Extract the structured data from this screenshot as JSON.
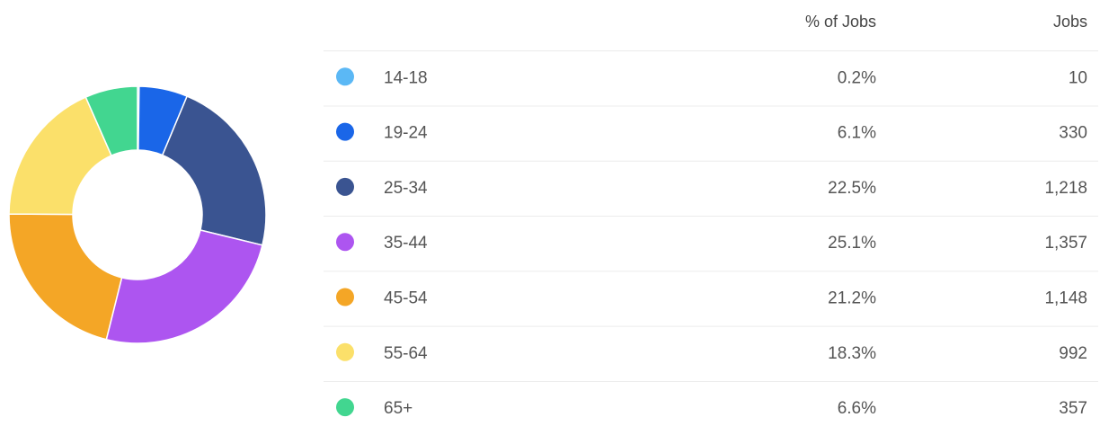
{
  "chart_data": {
    "type": "pie",
    "donut": true,
    "columns": [
      "% of Jobs",
      "Jobs"
    ],
    "categories": [
      "14-18",
      "19-24",
      "25-34",
      "35-44",
      "45-54",
      "55-64",
      "65+"
    ],
    "values": [
      0.2,
      6.1,
      22.5,
      25.1,
      21.2,
      18.3,
      6.6
    ],
    "value_labels": [
      "0.2%",
      "6.1%",
      "22.5%",
      "25.1%",
      "21.2%",
      "18.3%",
      "6.6%"
    ],
    "jobs": [
      "10",
      "330",
      "1,218",
      "1,357",
      "1,148",
      "992",
      "357"
    ],
    "colors": [
      "#5bb8f5",
      "#1a66e8",
      "#3a5491",
      "#ad55f0",
      "#f4a626",
      "#fbe06a",
      "#42d690"
    ]
  }
}
